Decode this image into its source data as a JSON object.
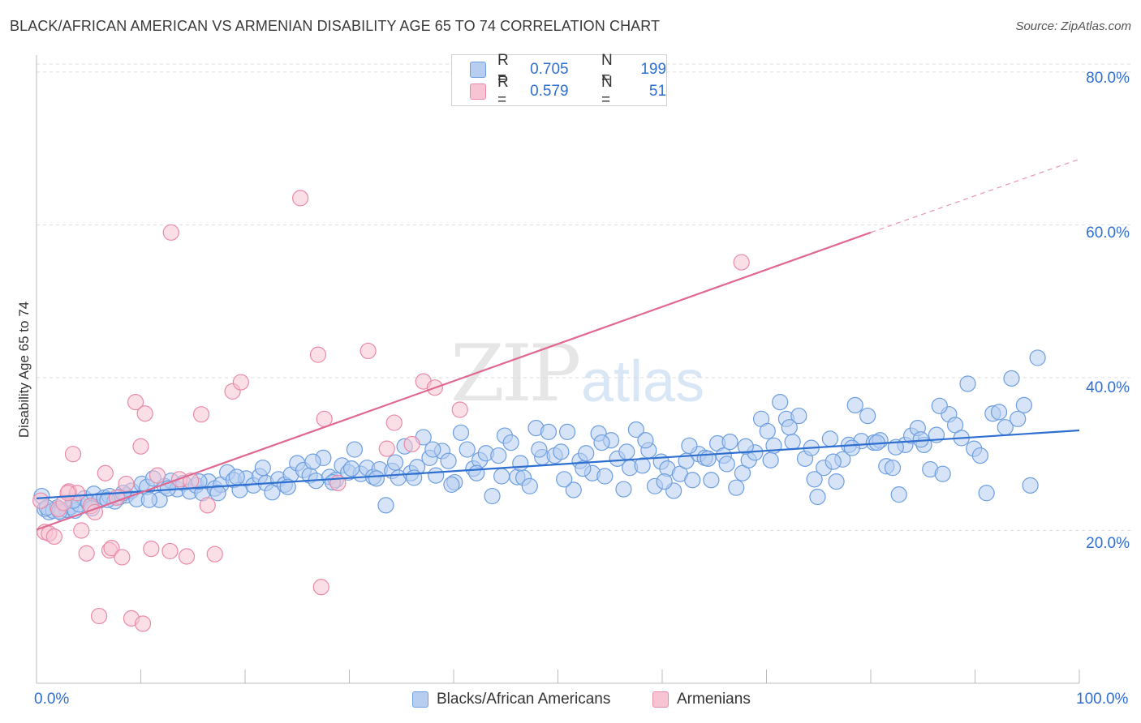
{
  "title": "BLACK/AFRICAN AMERICAN VS ARMENIAN DISABILITY AGE 65 TO 74 CORRELATION CHART",
  "source": "Source: ZipAtlas.com",
  "watermark": {
    "zip": "ZIP",
    "atlas": "atlas"
  },
  "colors": {
    "blue_fill": "#b7cef0",
    "blue_stroke": "#6d9ee0",
    "blue_line": "#2e6fd0",
    "pink_fill": "#f7c4d3",
    "pink_stroke": "#e98aa8",
    "pink_line": "#e06893",
    "accent_text": "#2f6fd0"
  },
  "legend_box": {
    "rows": [
      {
        "r_label": "R =",
        "r_value": "0.705",
        "n_label": "N =",
        "n_value": "199"
      },
      {
        "r_label": "R =",
        "r_value": "0.579",
        "n_label": "N =",
        "n_value": "51"
      }
    ]
  },
  "chart_data": {
    "type": "scatter",
    "title": "BLACK/AFRICAN AMERICAN VS ARMENIAN DISABILITY AGE 65 TO 74 CORRELATION CHART",
    "xlabel": "",
    "ylabel": "Disability Age 65 to 74",
    "xlim": [
      0,
      100
    ],
    "ylim": [
      0,
      82
    ],
    "x_tick_labels": [
      "0.0%",
      "100.0%"
    ],
    "y_ticks": [
      20,
      40,
      60,
      80
    ],
    "y_tick_labels": [
      "20.0%",
      "40.0%",
      "60.0%",
      "80.0%"
    ],
    "grid": true,
    "legend_position": "bottom-center",
    "series": [
      {
        "name": "Blacks/African Americans",
        "color": "#6d9ee0",
        "trend": {
          "x0": 0,
          "y0": 24.2,
          "x1": 100,
          "y1": 33.1
        },
        "points": [
          [
            0.5,
            24.5
          ],
          [
            0.8,
            22.8
          ],
          [
            1.2,
            22.4
          ],
          [
            1.6,
            22.6
          ],
          [
            2.0,
            23.0
          ],
          [
            2.4,
            22.3
          ],
          [
            2.9,
            22.7
          ],
          [
            3.3,
            23.1
          ],
          [
            3.7,
            22.6
          ],
          [
            4.1,
            23.4
          ],
          [
            4.6,
            24.2
          ],
          [
            5.0,
            23.6
          ],
          [
            5.5,
            24.8
          ],
          [
            6.0,
            23.9
          ],
          [
            6.5,
            24.3
          ],
          [
            7.0,
            24.5
          ],
          [
            7.5,
            23.8
          ],
          [
            8.0,
            24.4
          ],
          [
            8.6,
            24.6
          ],
          [
            9.1,
            25.2
          ],
          [
            9.6,
            24.1
          ],
          [
            10.1,
            26.1
          ],
          [
            10.6,
            25.7
          ],
          [
            11.2,
            26.8
          ],
          [
            11.8,
            24.0
          ],
          [
            12.3,
            25.8
          ],
          [
            12.9,
            26.5
          ],
          [
            13.5,
            25.4
          ],
          [
            14.1,
            26.2
          ],
          [
            14.7,
            25.1
          ],
          [
            15.3,
            25.9
          ],
          [
            15.9,
            24.9
          ],
          [
            16.5,
            26.4
          ],
          [
            17.1,
            25.5
          ],
          [
            17.7,
            26.0
          ],
          [
            18.3,
            27.6
          ],
          [
            18.9,
            26.6
          ],
          [
            19.5,
            25.3
          ],
          [
            20.1,
            26.8
          ],
          [
            20.8,
            25.9
          ],
          [
            21.4,
            27.1
          ],
          [
            22.0,
            26.2
          ],
          [
            22.6,
            25.0
          ],
          [
            23.2,
            26.7
          ],
          [
            23.8,
            26.0
          ],
          [
            24.4,
            27.3
          ],
          [
            25.0,
            28.8
          ],
          [
            25.6,
            27.9
          ],
          [
            26.2,
            27.2
          ],
          [
            26.8,
            26.5
          ],
          [
            27.5,
            29.5
          ],
          [
            28.1,
            27.0
          ],
          [
            28.7,
            26.6
          ],
          [
            29.3,
            28.5
          ],
          [
            29.9,
            27.6
          ],
          [
            30.5,
            30.6
          ],
          [
            31.1,
            27.4
          ],
          [
            31.7,
            28.2
          ],
          [
            32.3,
            27.0
          ],
          [
            32.9,
            28.0
          ],
          [
            33.5,
            23.3
          ],
          [
            34.1,
            27.8
          ],
          [
            34.7,
            26.9
          ],
          [
            35.3,
            31.0
          ],
          [
            35.9,
            27.5
          ],
          [
            36.5,
            28.3
          ],
          [
            37.1,
            32.2
          ],
          [
            37.7,
            29.5
          ],
          [
            38.3,
            27.2
          ],
          [
            38.9,
            30.4
          ],
          [
            39.5,
            29.1
          ],
          [
            40.1,
            26.3
          ],
          [
            40.7,
            32.8
          ],
          [
            41.3,
            30.6
          ],
          [
            41.9,
            28.1
          ],
          [
            42.5,
            29.2
          ],
          [
            43.1,
            30.1
          ],
          [
            43.7,
            24.5
          ],
          [
            44.3,
            29.8
          ],
          [
            44.9,
            32.4
          ],
          [
            45.5,
            31.5
          ],
          [
            46.1,
            27.0
          ],
          [
            46.7,
            26.9
          ],
          [
            47.3,
            25.8
          ],
          [
            47.9,
            33.4
          ],
          [
            48.5,
            29.6
          ],
          [
            49.1,
            32.9
          ],
          [
            49.7,
            29.8
          ],
          [
            50.3,
            30.3
          ],
          [
            50.9,
            32.9
          ],
          [
            51.5,
            25.3
          ],
          [
            52.1,
            29.1
          ],
          [
            52.7,
            30.1
          ],
          [
            53.3,
            27.5
          ],
          [
            53.9,
            32.7
          ],
          [
            54.5,
            27.1
          ],
          [
            55.1,
            31.8
          ],
          [
            55.7,
            29.4
          ],
          [
            56.3,
            25.4
          ],
          [
            56.9,
            28.2
          ],
          [
            57.5,
            33.2
          ],
          [
            58.1,
            28.5
          ],
          [
            58.7,
            30.5
          ],
          [
            59.3,
            25.8
          ],
          [
            59.9,
            29.0
          ],
          [
            60.5,
            28.1
          ],
          [
            61.1,
            25.2
          ],
          [
            61.7,
            27.4
          ],
          [
            62.3,
            29.1
          ],
          [
            62.9,
            26.6
          ],
          [
            63.5,
            30.0
          ],
          [
            64.1,
            29.5
          ],
          [
            64.7,
            26.6
          ],
          [
            65.3,
            31.4
          ],
          [
            65.9,
            29.8
          ],
          [
            66.5,
            31.6
          ],
          [
            67.1,
            25.6
          ],
          [
            67.7,
            27.5
          ],
          [
            68.3,
            29.2
          ],
          [
            68.9,
            30.2
          ],
          [
            69.5,
            34.6
          ],
          [
            70.1,
            33.0
          ],
          [
            70.7,
            31.1
          ],
          [
            71.3,
            36.8
          ],
          [
            71.9,
            34.6
          ],
          [
            72.5,
            31.6
          ],
          [
            73.1,
            35.0
          ],
          [
            73.7,
            29.4
          ],
          [
            74.3,
            30.8
          ],
          [
            74.9,
            24.4
          ],
          [
            75.5,
            28.2
          ],
          [
            76.1,
            32.0
          ],
          [
            76.7,
            26.4
          ],
          [
            77.3,
            29.3
          ],
          [
            77.9,
            31.2
          ],
          [
            78.5,
            36.4
          ],
          [
            79.1,
            31.7
          ],
          [
            79.7,
            35.0
          ],
          [
            80.3,
            31.5
          ],
          [
            80.9,
            31.8
          ],
          [
            81.5,
            28.4
          ],
          [
            82.1,
            28.2
          ],
          [
            82.7,
            24.7
          ],
          [
            83.3,
            31.2
          ],
          [
            83.9,
            32.4
          ],
          [
            84.5,
            33.4
          ],
          [
            85.1,
            31.2
          ],
          [
            85.7,
            28.0
          ],
          [
            86.3,
            32.5
          ],
          [
            86.9,
            27.4
          ],
          [
            87.5,
            35.2
          ],
          [
            88.1,
            33.8
          ],
          [
            88.7,
            32.1
          ],
          [
            89.3,
            39.2
          ],
          [
            89.9,
            30.7
          ],
          [
            90.5,
            29.8
          ],
          [
            91.1,
            24.9
          ],
          [
            91.7,
            35.3
          ],
          [
            92.3,
            35.5
          ],
          [
            92.9,
            33.5
          ],
          [
            93.5,
            39.9
          ],
          [
            94.1,
            34.6
          ],
          [
            94.7,
            36.4
          ],
          [
            95.3,
            25.9
          ],
          [
            96.0,
            42.6
          ],
          [
            1.0,
            23.0
          ],
          [
            2.2,
            22.5
          ],
          [
            3.5,
            23.9
          ],
          [
            5.3,
            22.9
          ],
          [
            6.8,
            24.0
          ],
          [
            8.3,
            24.9
          ],
          [
            10.8,
            24.0
          ],
          [
            12.6,
            25.5
          ],
          [
            15.6,
            26.4
          ],
          [
            17.4,
            24.9
          ],
          [
            19.2,
            27.0
          ],
          [
            21.7,
            28.2
          ],
          [
            24.1,
            25.7
          ],
          [
            26.5,
            29.0
          ],
          [
            28.4,
            26.3
          ],
          [
            30.2,
            28.1
          ],
          [
            32.6,
            26.8
          ],
          [
            34.4,
            28.9
          ],
          [
            36.2,
            26.9
          ],
          [
            38.0,
            30.6
          ],
          [
            39.8,
            26.0
          ],
          [
            42.2,
            27.5
          ],
          [
            44.6,
            27.1
          ],
          [
            46.4,
            28.8
          ],
          [
            48.2,
            30.6
          ],
          [
            50.6,
            26.7
          ],
          [
            52.4,
            28.1
          ],
          [
            54.2,
            31.5
          ],
          [
            56.6,
            30.3
          ],
          [
            58.4,
            31.8
          ],
          [
            60.2,
            26.4
          ],
          [
            62.6,
            31.1
          ],
          [
            64.4,
            29.4
          ],
          [
            66.2,
            28.7
          ],
          [
            68.0,
            31.0
          ],
          [
            70.4,
            29.2
          ],
          [
            72.2,
            33.5
          ],
          [
            74.6,
            26.7
          ],
          [
            76.4,
            29.0
          ],
          [
            78.2,
            30.8
          ],
          [
            80.6,
            31.5
          ],
          [
            82.4,
            30.9
          ],
          [
            84.8,
            31.9
          ],
          [
            86.6,
            36.3
          ]
        ]
      },
      {
        "name": "Armenians",
        "color": "#e98aa8",
        "trend": {
          "x0": 0,
          "y0": 20.1,
          "x1": 80,
          "y1": 59.0,
          "dash_to_x": 100,
          "dash_to_y": 68.6
        },
        "points": [
          [
            0.4,
            23.9
          ],
          [
            0.8,
            19.8
          ],
          [
            1.2,
            19.6
          ],
          [
            1.7,
            19.2
          ],
          [
            2.1,
            22.8
          ],
          [
            2.6,
            23.6
          ],
          [
            3.1,
            25.1
          ],
          [
            3.5,
            30.0
          ],
          [
            3.9,
            24.9
          ],
          [
            4.3,
            20.0
          ],
          [
            4.8,
            17.0
          ],
          [
            5.2,
            23.2
          ],
          [
            5.6,
            22.4
          ],
          [
            6.0,
            8.8
          ],
          [
            6.6,
            27.5
          ],
          [
            7.0,
            17.4
          ],
          [
            7.2,
            17.7
          ],
          [
            7.7,
            24.3
          ],
          [
            8.2,
            16.5
          ],
          [
            8.6,
            26.1
          ],
          [
            9.1,
            8.5
          ],
          [
            9.5,
            36.8
          ],
          [
            10.0,
            31.0
          ],
          [
            10.2,
            7.8
          ],
          [
            10.4,
            35.3
          ],
          [
            11.0,
            17.6
          ],
          [
            11.6,
            27.2
          ],
          [
            12.8,
            17.3
          ],
          [
            12.9,
            59.0
          ],
          [
            13.7,
            26.7
          ],
          [
            14.4,
            16.6
          ],
          [
            14.8,
            26.5
          ],
          [
            15.8,
            35.2
          ],
          [
            16.4,
            23.3
          ],
          [
            17.1,
            16.9
          ],
          [
            18.8,
            38.2
          ],
          [
            19.6,
            39.4
          ],
          [
            25.3,
            63.5
          ],
          [
            27.0,
            43.0
          ],
          [
            27.3,
            12.6
          ],
          [
            27.6,
            34.6
          ],
          [
            28.9,
            26.2
          ],
          [
            31.8,
            43.5
          ],
          [
            33.6,
            30.7
          ],
          [
            34.3,
            34.1
          ],
          [
            36.0,
            31.3
          ],
          [
            37.1,
            39.5
          ],
          [
            38.2,
            38.7
          ],
          [
            40.6,
            35.8
          ],
          [
            67.6,
            55.1
          ],
          [
            3.0,
            24.9
          ]
        ]
      }
    ]
  }
}
